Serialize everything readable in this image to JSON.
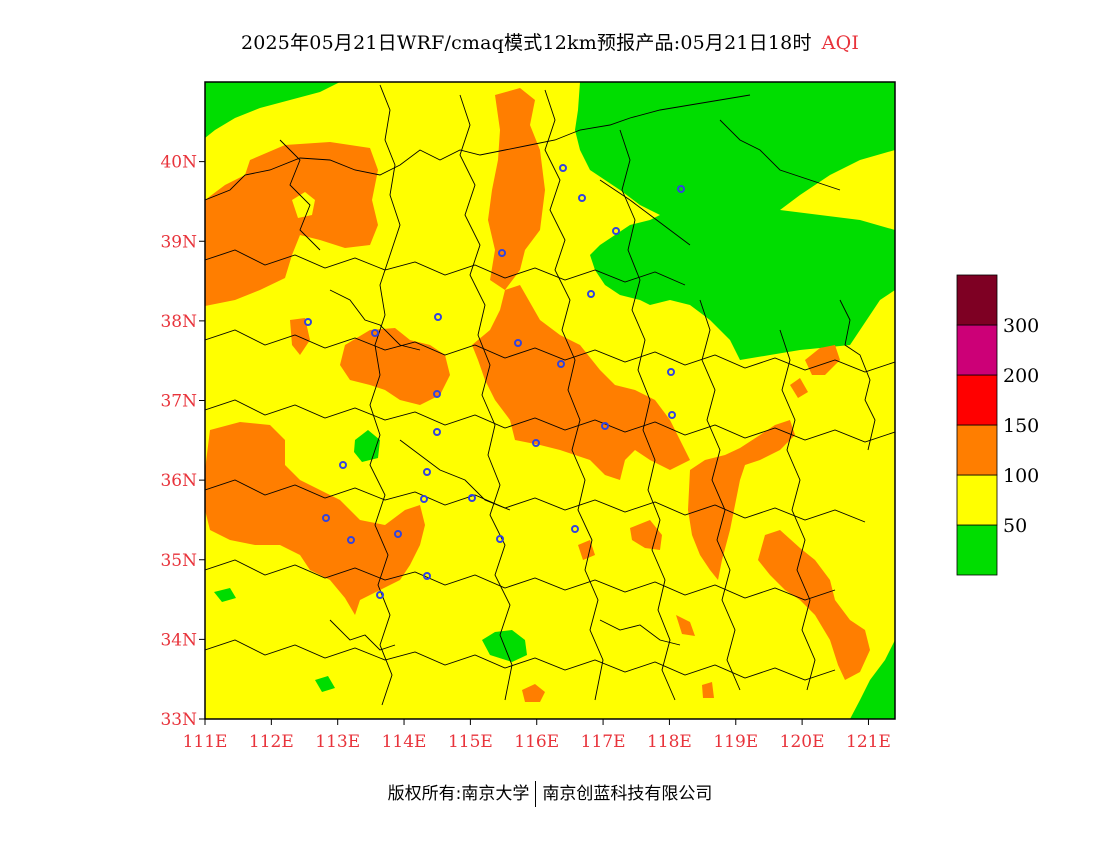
{
  "title": {
    "main": "2025年05月21日WRF/cmaq模式12km预报产品:05月21日18时",
    "variable": "AQI"
  },
  "axes": {
    "lon_ticks": [
      "111E",
      "112E",
      "113E",
      "114E",
      "115E",
      "116E",
      "117E",
      "118E",
      "119E",
      "120E",
      "121E"
    ],
    "lat_ticks": [
      "33N",
      "34N",
      "35N",
      "36N",
      "37N",
      "38N",
      "39N",
      "40N"
    ],
    "lon_range": [
      111,
      121.4
    ],
    "lat_range": [
      33,
      41
    ]
  },
  "legend": {
    "levels": [
      {
        "label": "",
        "color": "#00dd00"
      },
      {
        "label": "50",
        "color": "#ffff00"
      },
      {
        "label": "100",
        "color": "#ff7e00"
      },
      {
        "label": "150",
        "color": "#ff0000"
      },
      {
        "label": "200",
        "color": "#cc0077"
      },
      {
        "label": "300",
        "color": "#7e0023"
      }
    ],
    "tick_labels": [
      "50",
      "100",
      "150",
      "200",
      "300"
    ]
  },
  "colors": {
    "good": "#00dd00",
    "moderate": "#ffff00",
    "unhealthy_sensitive": "#ff7e00",
    "unhealthy": "#ff0000",
    "very_unhealthy": "#cc0077",
    "hazardous": "#7e0023",
    "axis_label": "#e8333b",
    "station_marker": "#3344dd"
  },
  "footer": {
    "copyright": "版权所有:南京大学",
    "company": "南京创蓝科技有限公司"
  }
}
